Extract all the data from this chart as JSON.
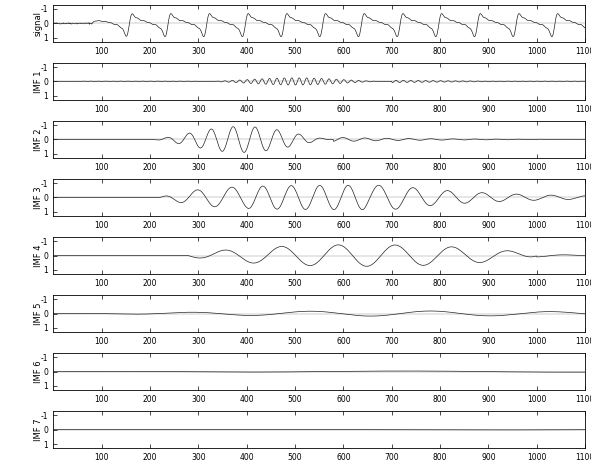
{
  "n_samples": 1100,
  "xlim": [
    0,
    1100
  ],
  "yticks": [
    -1,
    0,
    1
  ],
  "xticks": [
    100,
    200,
    300,
    400,
    500,
    600,
    700,
    800,
    900,
    1000,
    1100
  ],
  "ylabel_signal": "signal",
  "ylabels_imf": [
    "IMF 1",
    "IMF 2",
    "IMF 3",
    "IMF 4",
    "IMF 5",
    "IMF 6",
    "IMF 7"
  ],
  "line_color": "#222222",
  "line_width": 0.5,
  "background_color": "#ffffff",
  "fig_facecolor": "#ffffff",
  "seed": 42
}
